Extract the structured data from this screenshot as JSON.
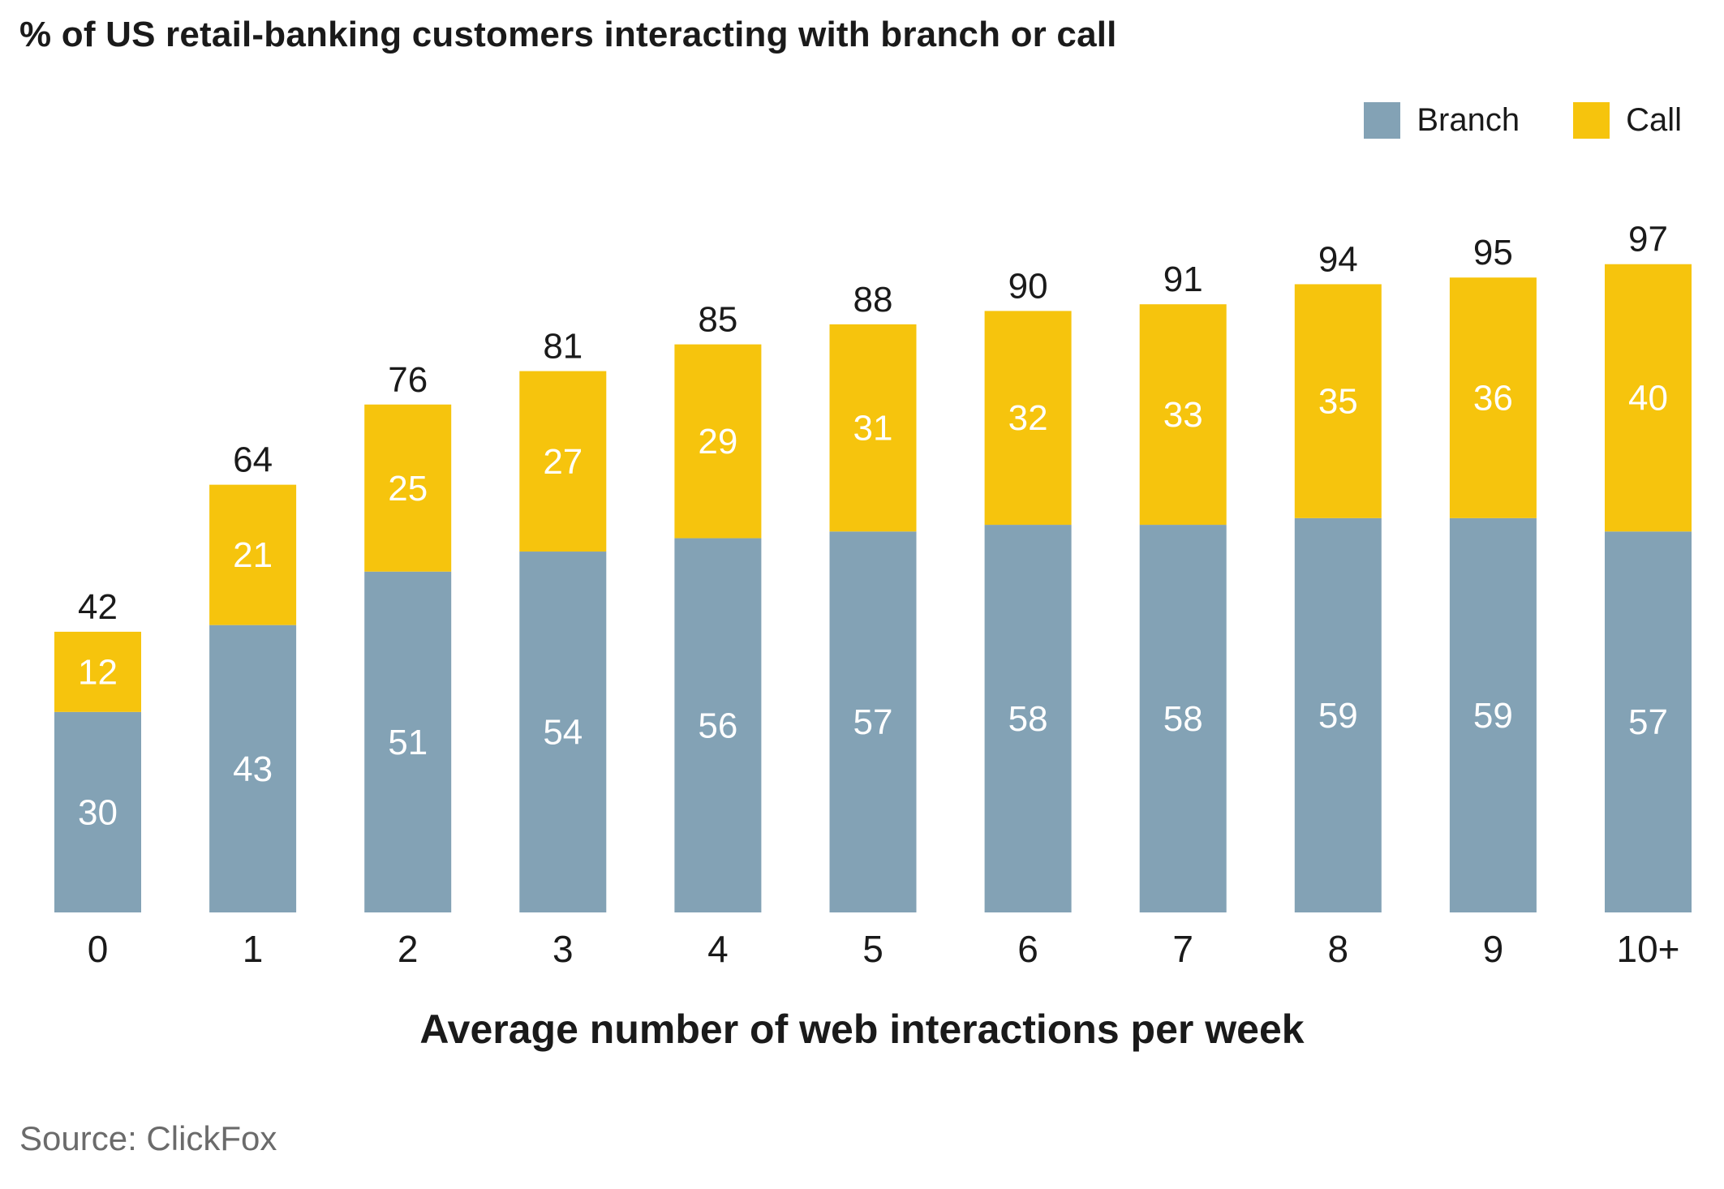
{
  "colors": {
    "branch": "#83a2b5",
    "call": "#f6c40d",
    "text": "#1a1a1a",
    "inbar_text": "#ffffff"
  },
  "chart_data": {
    "type": "bar",
    "stacked": true,
    "title": "% of US retail-banking customers interacting with branch or call",
    "xlabel": "Average number of web interactions per week",
    "ylabel": "",
    "categories": [
      "0",
      "1",
      "2",
      "3",
      "4",
      "5",
      "6",
      "7",
      "8",
      "9",
      "10+"
    ],
    "series": [
      {
        "name": "Branch",
        "values": [
          30,
          43,
          51,
          54,
          56,
          57,
          58,
          58,
          59,
          59,
          57
        ]
      },
      {
        "name": "Call",
        "values": [
          12,
          21,
          25,
          27,
          29,
          31,
          32,
          33,
          35,
          36,
          40
        ]
      }
    ],
    "totals": [
      42,
      64,
      76,
      81,
      85,
      88,
      90,
      91,
      94,
      95,
      97
    ],
    "ylim": [
      0,
      100
    ],
    "grid": false,
    "legend": "top-right",
    "source": "Source: ClickFox"
  }
}
